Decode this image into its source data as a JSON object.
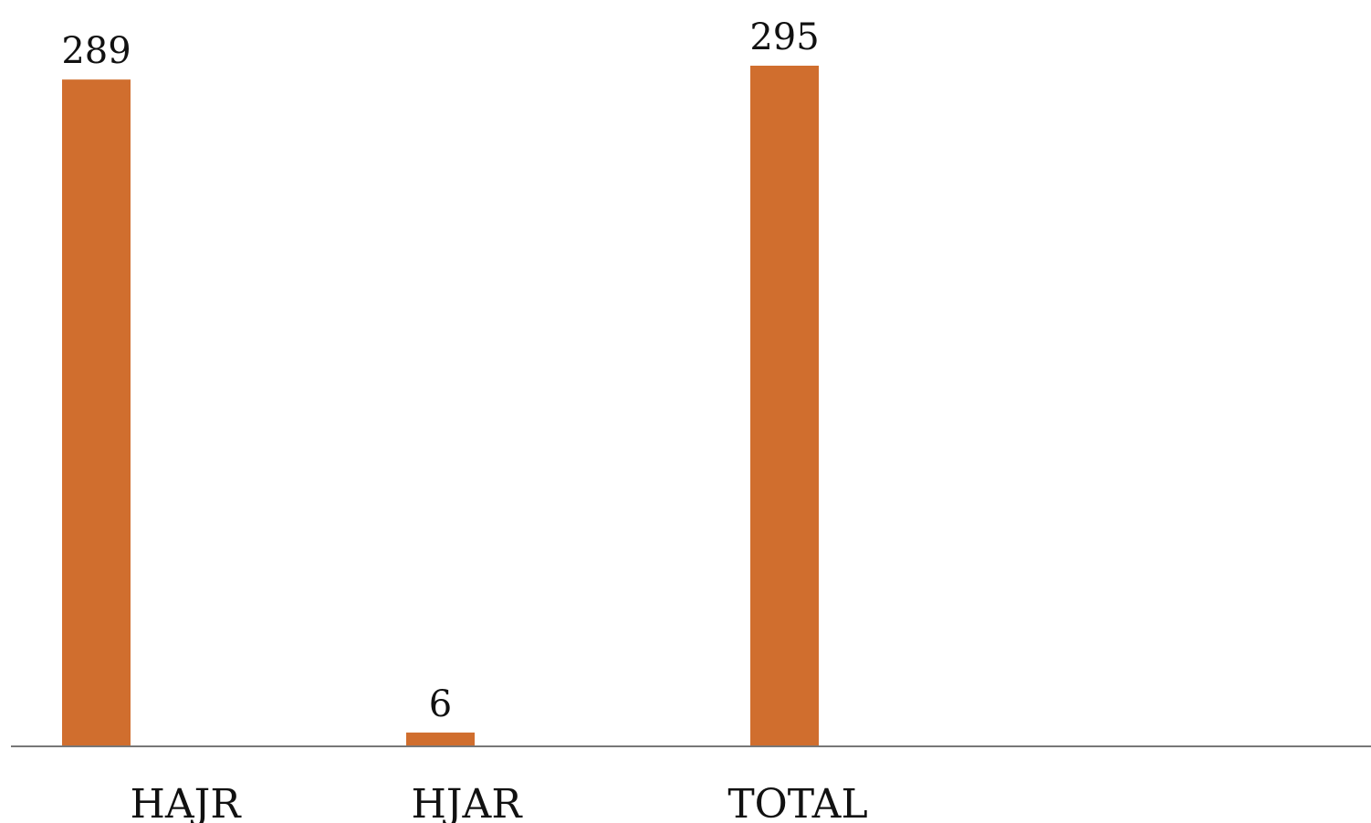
{
  "chart_data": {
    "type": "bar",
    "categories": [
      "HAJR",
      "HJAR",
      "TOTAL"
    ],
    "values": [
      289,
      6,
      295
    ],
    "data_labels": [
      "289",
      "6",
      "295"
    ],
    "title": "",
    "xlabel": "",
    "ylabel": "",
    "ylim": [
      0,
      295
    ],
    "grid": false,
    "legend": "none",
    "colors": {
      "bar": "#D06E2E",
      "axis": "#777777",
      "text": "#111111"
    }
  }
}
